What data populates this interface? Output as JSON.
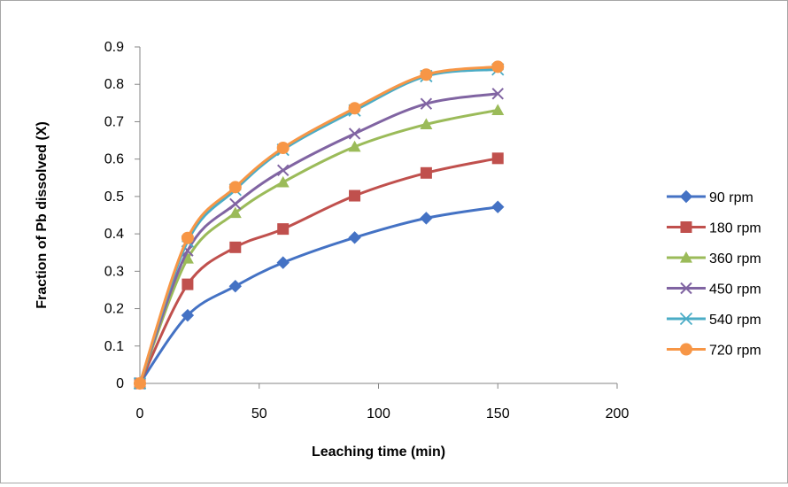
{
  "chart_data": {
    "type": "line",
    "title": "",
    "xlabel": "Leaching time (min)",
    "ylabel": "Fraction of Pb dissolved (X)",
    "xlim": [
      0,
      200
    ],
    "ylim": [
      0,
      0.9
    ],
    "xticks": [
      0,
      50,
      100,
      150,
      200
    ],
    "yticks": [
      0,
      0.1,
      0.2,
      0.3,
      0.4,
      0.5,
      0.6,
      0.7,
      0.8,
      0.9
    ],
    "grid": false,
    "smooth": true,
    "legend_position": "right",
    "x": [
      0,
      20,
      40,
      60,
      90,
      120,
      150
    ],
    "series": [
      {
        "name": "90 rpm",
        "color": "#4472c4",
        "marker": "diamond",
        "values": [
          0,
          0.182,
          0.26,
          0.323,
          0.39,
          0.442,
          0.472
        ]
      },
      {
        "name": "180 rpm",
        "color": "#c0504d",
        "marker": "square",
        "values": [
          0,
          0.265,
          0.364,
          0.413,
          0.502,
          0.563,
          0.602
        ]
      },
      {
        "name": "360 rpm",
        "color": "#9bbb59",
        "marker": "triangle",
        "values": [
          0,
          0.334,
          0.456,
          0.538,
          0.633,
          0.693,
          0.731
        ]
      },
      {
        "name": "450 rpm",
        "color": "#8064a2",
        "marker": "x",
        "values": [
          0,
          0.355,
          0.48,
          0.57,
          0.668,
          0.748,
          0.775
        ]
      },
      {
        "name": "540 rpm",
        "color": "#4bacc6",
        "marker": "star",
        "values": [
          0,
          0.38,
          0.518,
          0.625,
          0.73,
          0.822,
          0.84
        ]
      },
      {
        "name": "720 rpm",
        "color": "#f79646",
        "marker": "circle",
        "values": [
          0,
          0.389,
          0.525,
          0.63,
          0.736,
          0.826,
          0.847
        ]
      }
    ]
  }
}
